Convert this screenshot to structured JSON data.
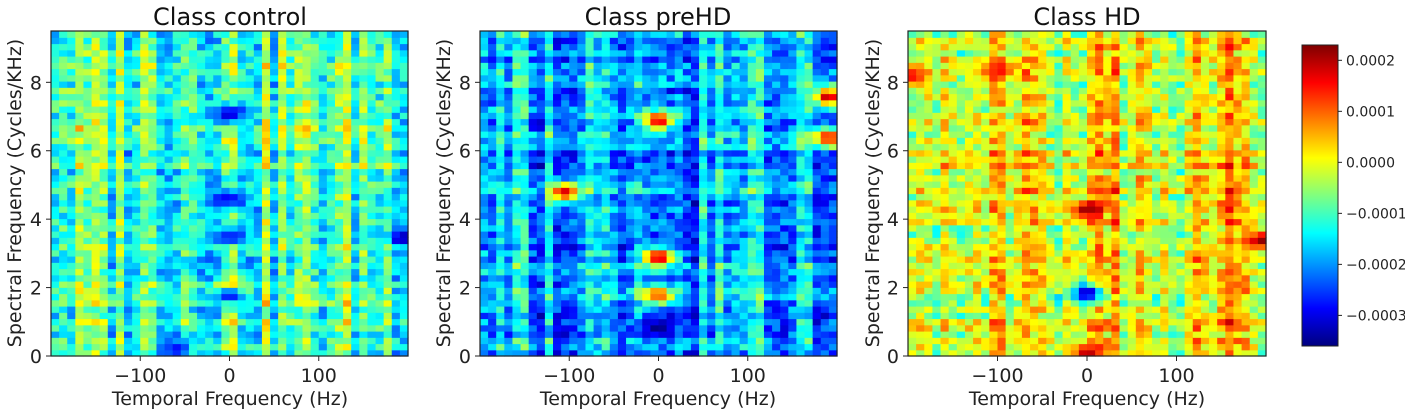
{
  "chart_data": [
    {
      "type": "heatmap",
      "title": "Class control",
      "xlabel": "Temporal Frequency (Hz)",
      "ylabel": "Spectral Frequency (Cycles/KHz)",
      "xlim": [
        -200,
        200
      ],
      "ylim": [
        0,
        9.5
      ],
      "xticks": [
        -100,
        0,
        100
      ],
      "yticks": [
        0,
        2,
        4,
        6,
        8
      ],
      "base_level": -9e-05,
      "features": [
        {
          "x": 0,
          "y": 7.1,
          "value": -0.00033
        },
        {
          "x": 0,
          "y": 4.6,
          "value": -0.0003
        },
        {
          "x": 0,
          "y": 3.5,
          "value": -0.00028
        },
        {
          "x": 0,
          "y": 1.95,
          "value": 0.00022
        },
        {
          "x": 0,
          "y": 1.8,
          "value": -0.00031
        },
        {
          "x": -60,
          "y": 0.25,
          "value": -0.00028
        },
        {
          "x": 195,
          "y": 3.5,
          "value": -0.00032
        }
      ]
    },
    {
      "type": "heatmap",
      "title": "Class preHD",
      "xlabel": "Temporal Frequency (Hz)",
      "ylabel": "Spectral Frequency (Cycles/KHz)",
      "xlim": [
        -200,
        200
      ],
      "ylim": [
        0,
        9.5
      ],
      "xticks": [
        -100,
        0,
        100
      ],
      "yticks": [
        0,
        2,
        4,
        6,
        8
      ],
      "base_level": -0.00018,
      "features": [
        {
          "x": 0,
          "y": 6.9,
          "value": 0.00018
        },
        {
          "x": 0,
          "y": 2.9,
          "value": 0.0002
        },
        {
          "x": 0,
          "y": 1.8,
          "value": 0.00012
        },
        {
          "x": 0,
          "y": 0.85,
          "value": -0.00036
        },
        {
          "x": -105,
          "y": 4.8,
          "value": 0.00018
        },
        {
          "x": 190,
          "y": 7.6,
          "value": 0.0002
        },
        {
          "x": 190,
          "y": 6.4,
          "value": 0.00016
        }
      ]
    },
    {
      "type": "heatmap",
      "title": "Class HD",
      "xlabel": "Temporal Frequency (Hz)",
      "ylabel": "Spectral Frequency (Cycles/KHz)",
      "xlim": [
        -200,
        200
      ],
      "ylim": [
        0,
        9.5
      ],
      "xticks": [
        -100,
        0,
        100
      ],
      "yticks": [
        0,
        2,
        4,
        6,
        8
      ],
      "base_level": 2e-05,
      "features": [
        {
          "x": 0,
          "y": 4.3,
          "value": 0.00022
        },
        {
          "x": 0,
          "y": 1.85,
          "value": -0.00034
        },
        {
          "x": -100,
          "y": 8.4,
          "value": 0.00015
        },
        {
          "x": 195,
          "y": 3.4,
          "value": 0.00022
        },
        {
          "x": -195,
          "y": 8.2,
          "value": 0.00016
        },
        {
          "x": 0,
          "y": 0.1,
          "value": 0.0002
        }
      ]
    }
  ],
  "colorbar": {
    "colormap": "jet",
    "min": -0.00036,
    "max": 0.00023,
    "ticks": [
      {
        "value": 0.0002,
        "label": "0.0002"
      },
      {
        "value": 0.0001,
        "label": "0.0001"
      },
      {
        "value": 0.0,
        "label": "0.0000"
      },
      {
        "value": -0.0001,
        "label": "−0.0001"
      },
      {
        "value": -0.0002,
        "label": "−0.0002"
      },
      {
        "value": -0.0003,
        "label": "−0.0003"
      }
    ]
  },
  "colors": {
    "axes_frame": "#222222",
    "text": "#222222"
  }
}
